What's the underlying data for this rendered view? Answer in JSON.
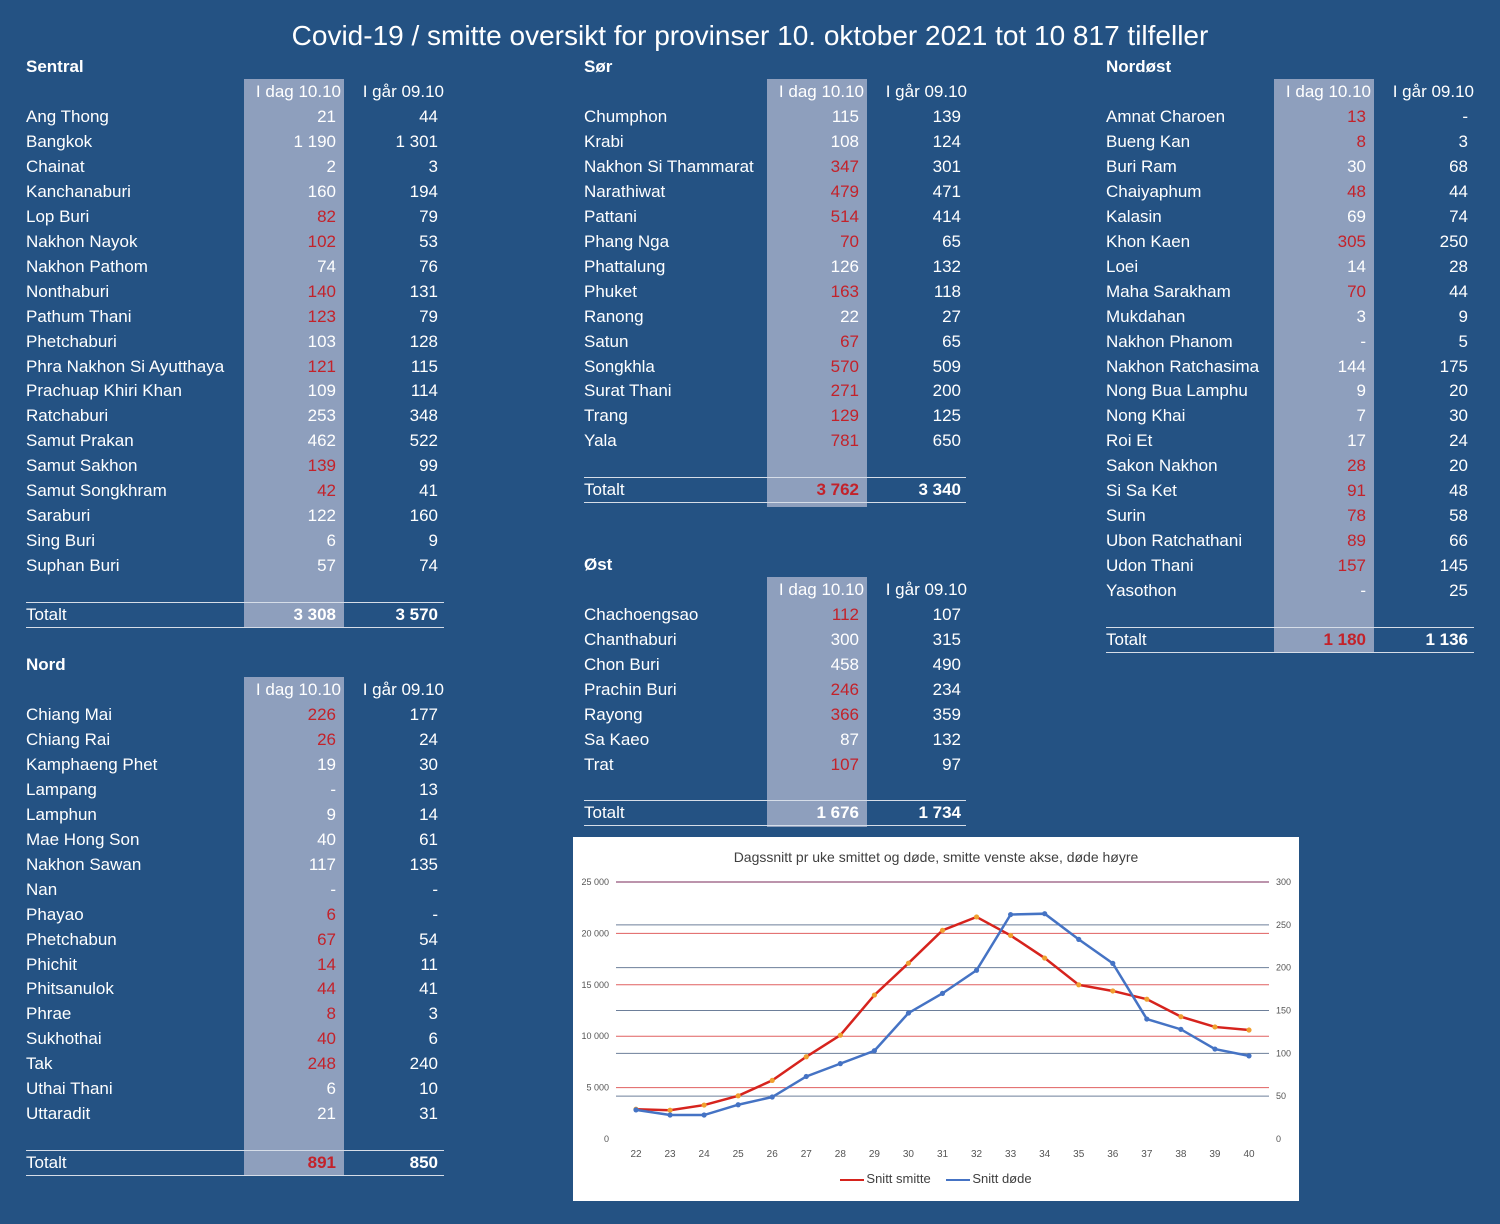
{
  "title": "Covid-19 / smitte oversikt for provinser 10. oktober 2021 tot 10 817 tilfeller",
  "colors": {
    "background": "#245283",
    "highlight_column": "#8e9fbd",
    "red_value": "#c3222a",
    "series_smitte": "#d6231d",
    "series_dode": "#4573c4"
  },
  "headers": {
    "today": "I dag 10.10",
    "yesterday": "I går 09.10"
  },
  "total_label": "Totalt",
  "regions": [
    {
      "name": "Sentral",
      "rows": [
        {
          "p": "Ang Thong",
          "t": "21",
          "y": "44",
          "r": false
        },
        {
          "p": "Bangkok",
          "t": "1 190",
          "y": "1 301",
          "r": false
        },
        {
          "p": "Chainat",
          "t": "2",
          "y": "3",
          "r": false
        },
        {
          "p": "Kanchanaburi",
          "t": "160",
          "y": "194",
          "r": false
        },
        {
          "p": "Lop Buri",
          "t": "82",
          "y": "79",
          "r": true
        },
        {
          "p": "Nakhon Nayok",
          "t": "102",
          "y": "53",
          "r": true
        },
        {
          "p": "Nakhon Pathom",
          "t": "74",
          "y": "76",
          "r": false
        },
        {
          "p": "Nonthaburi",
          "t": "140",
          "y": "131",
          "r": true
        },
        {
          "p": "Pathum Thani",
          "t": "123",
          "y": "79",
          "r": true
        },
        {
          "p": "Phetchaburi",
          "t": "103",
          "y": "128",
          "r": false
        },
        {
          "p": "Phra Nakhon Si Ayutthaya",
          "t": "121",
          "y": "115",
          "r": true
        },
        {
          "p": "Prachuap Khiri Khan",
          "t": "109",
          "y": "114",
          "r": false
        },
        {
          "p": "Ratchaburi",
          "t": "253",
          "y": "348",
          "r": false
        },
        {
          "p": "Samut Prakan",
          "t": "462",
          "y": "522",
          "r": false
        },
        {
          "p": "Samut Sakhon",
          "t": "139",
          "y": "99",
          "r": true
        },
        {
          "p": "Samut Songkhram",
          "t": "42",
          "y": "41",
          "r": true
        },
        {
          "p": "Saraburi",
          "t": "122",
          "y": "160",
          "r": false
        },
        {
          "p": "Sing Buri",
          "t": "6",
          "y": "9",
          "r": false
        },
        {
          "p": "Suphan Buri",
          "t": "57",
          "y": "74",
          "r": false
        }
      ],
      "total": {
        "t": "3 308",
        "y": "3 570",
        "r": false
      }
    },
    {
      "name": "Nord",
      "rows": [
        {
          "p": "Chiang Mai",
          "t": "226",
          "y": "177",
          "r": true
        },
        {
          "p": "Chiang Rai",
          "t": "26",
          "y": "24",
          "r": true
        },
        {
          "p": "Kamphaeng Phet",
          "t": "19",
          "y": "30",
          "r": false
        },
        {
          "p": "Lampang",
          "t": "-",
          "y": "13",
          "r": false
        },
        {
          "p": "Lamphun",
          "t": "9",
          "y": "14",
          "r": false
        },
        {
          "p": "Mae Hong Son",
          "t": "40",
          "y": "61",
          "r": false
        },
        {
          "p": "Nakhon Sawan",
          "t": "117",
          "y": "135",
          "r": false
        },
        {
          "p": "Nan",
          "t": "-",
          "y": "-",
          "r": false
        },
        {
          "p": "Phayao",
          "t": "6",
          "y": "-",
          "r": true
        },
        {
          "p": "Phetchabun",
          "t": "67",
          "y": "54",
          "r": true
        },
        {
          "p": "Phichit",
          "t": "14",
          "y": "11",
          "r": true
        },
        {
          "p": "Phitsanulok",
          "t": "44",
          "y": "41",
          "r": true
        },
        {
          "p": "Phrae",
          "t": "8",
          "y": "3",
          "r": true
        },
        {
          "p": "Sukhothai",
          "t": "40",
          "y": "6",
          "r": true
        },
        {
          "p": "Tak",
          "t": "248",
          "y": "240",
          "r": true
        },
        {
          "p": "Uthai Thani",
          "t": "6",
          "y": "10",
          "r": false
        },
        {
          "p": "Uttaradit",
          "t": "21",
          "y": "31",
          "r": false
        }
      ],
      "total": {
        "t": "891",
        "y": "850",
        "r": true
      }
    },
    {
      "name": "Sør",
      "rows": [
        {
          "p": "Chumphon",
          "t": "115",
          "y": "139",
          "r": false
        },
        {
          "p": "Krabi",
          "t": "108",
          "y": "124",
          "r": false
        },
        {
          "p": "Nakhon Si Thammarat",
          "t": "347",
          "y": "301",
          "r": true
        },
        {
          "p": "Narathiwat",
          "t": "479",
          "y": "471",
          "r": true
        },
        {
          "p": "Pattani",
          "t": "514",
          "y": "414",
          "r": true
        },
        {
          "p": "Phang Nga",
          "t": "70",
          "y": "65",
          "r": true
        },
        {
          "p": "Phattalung",
          "t": "126",
          "y": "132",
          "r": false
        },
        {
          "p": "Phuket",
          "t": "163",
          "y": "118",
          "r": true
        },
        {
          "p": "Ranong",
          "t": "22",
          "y": "27",
          "r": false
        },
        {
          "p": "Satun",
          "t": "67",
          "y": "65",
          "r": true
        },
        {
          "p": "Songkhla",
          "t": "570",
          "y": "509",
          "r": true
        },
        {
          "p": "Surat Thani",
          "t": "271",
          "y": "200",
          "r": true
        },
        {
          "p": "Trang",
          "t": "129",
          "y": "125",
          "r": true
        },
        {
          "p": "Yala",
          "t": "781",
          "y": "650",
          "r": true
        }
      ],
      "total": {
        "t": "3 762",
        "y": "3 340",
        "r": true
      }
    },
    {
      "name": "Øst",
      "rows": [
        {
          "p": "Chachoengsao",
          "t": "112",
          "y": "107",
          "r": true
        },
        {
          "p": "Chanthaburi",
          "t": "300",
          "y": "315",
          "r": false
        },
        {
          "p": "Chon Buri",
          "t": "458",
          "y": "490",
          "r": false
        },
        {
          "p": "Prachin Buri",
          "t": "246",
          "y": "234",
          "r": true
        },
        {
          "p": "Rayong",
          "t": "366",
          "y": "359",
          "r": true
        },
        {
          "p": "Sa Kaeo",
          "t": "87",
          "y": "132",
          "r": false
        },
        {
          "p": "Trat",
          "t": "107",
          "y": "97",
          "r": true
        }
      ],
      "total": {
        "t": "1 676",
        "y": "1 734",
        "r": false
      }
    },
    {
      "name": "Nordøst",
      "rows": [
        {
          "p": "Amnat Charoen",
          "t": "13",
          "y": "-",
          "r": true
        },
        {
          "p": "Bueng Kan",
          "t": "8",
          "y": "3",
          "r": true
        },
        {
          "p": "Buri Ram",
          "t": "30",
          "y": "68",
          "r": false
        },
        {
          "p": "Chaiyaphum",
          "t": "48",
          "y": "44",
          "r": true
        },
        {
          "p": "Kalasin",
          "t": "69",
          "y": "74",
          "r": false
        },
        {
          "p": "Khon Kaen",
          "t": "305",
          "y": "250",
          "r": true
        },
        {
          "p": "Loei",
          "t": "14",
          "y": "28",
          "r": false
        },
        {
          "p": "Maha Sarakham",
          "t": "70",
          "y": "44",
          "r": true
        },
        {
          "p": "Mukdahan",
          "t": "3",
          "y": "9",
          "r": false
        },
        {
          "p": "Nakhon Phanom",
          "t": "-",
          "y": "5",
          "r": false
        },
        {
          "p": "Nakhon Ratchasima",
          "t": "144",
          "y": "175",
          "r": false
        },
        {
          "p": "Nong Bua Lamphu",
          "t": "9",
          "y": "20",
          "r": false
        },
        {
          "p": "Nong Khai",
          "t": "7",
          "y": "30",
          "r": false
        },
        {
          "p": "Roi Et",
          "t": "17",
          "y": "24",
          "r": false
        },
        {
          "p": "Sakon Nakhon",
          "t": "28",
          "y": "20",
          "r": true
        },
        {
          "p": "Si Sa Ket",
          "t": "91",
          "y": "48",
          "r": true
        },
        {
          "p": "Surin",
          "t": "78",
          "y": "58",
          "r": true
        },
        {
          "p": "Ubon Ratchathani",
          "t": "89",
          "y": "66",
          "r": true
        },
        {
          "p": "Udon Thani",
          "t": "157",
          "y": "145",
          "r": true
        },
        {
          "p": "Yasothon",
          "t": "-",
          "y": "25",
          "r": false
        }
      ],
      "total": {
        "t": "1 180",
        "y": "1 136",
        "r": true
      }
    }
  ],
  "chart_data": {
    "type": "line",
    "title": "Dagssnitt pr uke smittet og døde, smitte venste akse, døde høyre",
    "x": [
      22,
      23,
      24,
      25,
      26,
      27,
      28,
      29,
      30,
      31,
      32,
      33,
      34,
      35,
      36,
      37,
      38,
      39,
      40
    ],
    "ylim": [
      0,
      25000
    ],
    "y2lim": [
      0,
      300
    ],
    "yticks": [
      "0",
      "5 000",
      "10 000",
      "15 000",
      "20 000",
      "25 000"
    ],
    "y2ticks": [
      "0",
      "50",
      "100",
      "150",
      "200",
      "250",
      "300"
    ],
    "grid": true,
    "legend": "bottom",
    "series": [
      {
        "name": "Snitt smitte",
        "axis": "left",
        "color": "#d6231d",
        "marker_color": "#f0a030",
        "values": [
          2900,
          2800,
          3300,
          4200,
          5700,
          8000,
          10100,
          14000,
          17100,
          20300,
          21600,
          19800,
          17600,
          15000,
          14400,
          13600,
          11900,
          10900,
          10600
        ]
      },
      {
        "name": "Snitt døde",
        "axis": "right",
        "color": "#4573c4",
        "marker_color": "#4573c4",
        "values": [
          34,
          28,
          28,
          40,
          49,
          73,
          88,
          103,
          147,
          170,
          197,
          262,
          263,
          233,
          205,
          140,
          128,
          105,
          97
        ]
      }
    ]
  }
}
